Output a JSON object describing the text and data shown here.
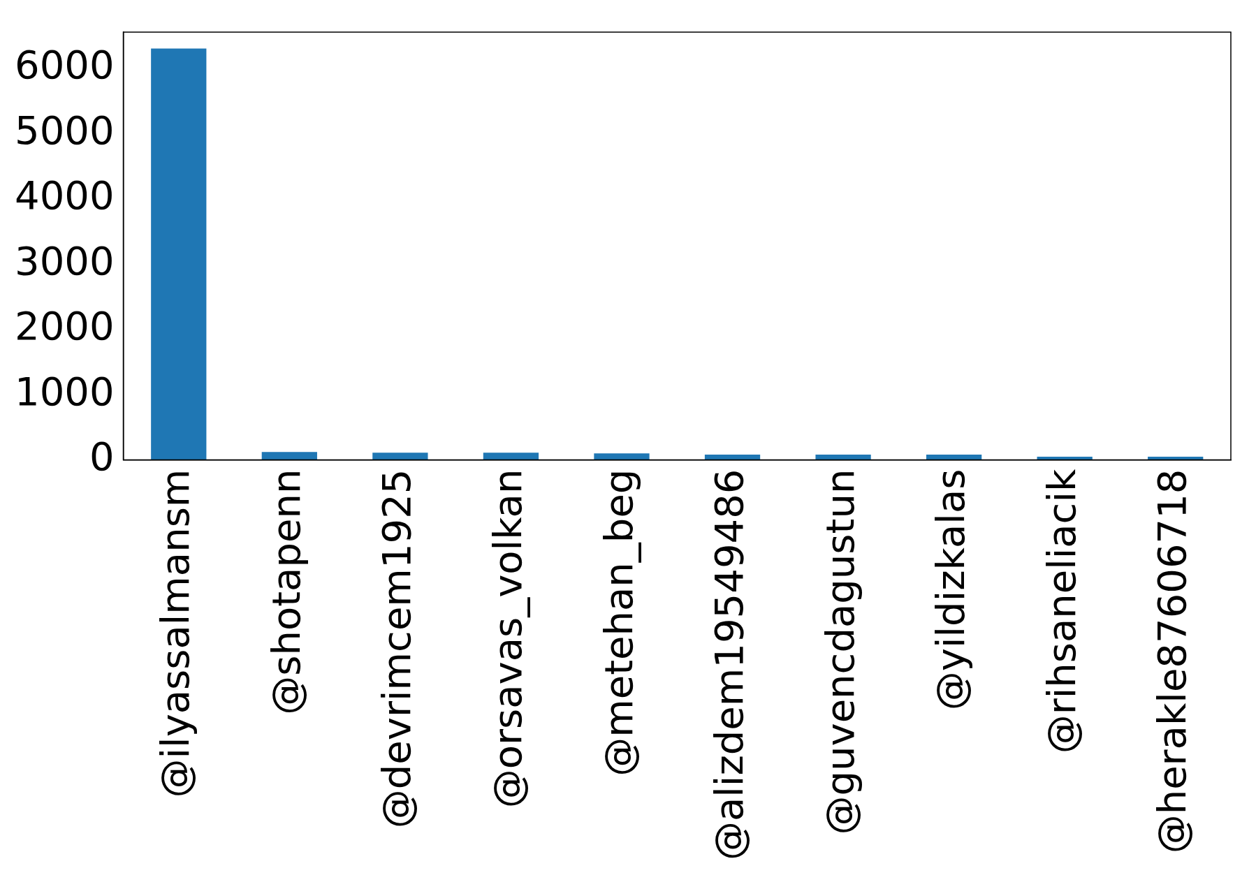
{
  "chart_data": {
    "type": "bar",
    "categories": [
      "@ilyassalmansm",
      "@shotapenn",
      "@devrimcem1925",
      "@orsavas_volkan",
      "@metehan_beg",
      "@alizdem19549486",
      "@guvencdagustun",
      "@yildizkalas",
      "@rihsaneliacik",
      "@herakle87606718"
    ],
    "values": [
      6300,
      120,
      110,
      110,
      100,
      80,
      80,
      80,
      50,
      50
    ],
    "color": "#1f77b4",
    "ylim": [
      0,
      6550
    ],
    "yticks": [
      0,
      1000,
      2000,
      3000,
      4000,
      5000,
      6000
    ],
    "grid": false,
    "legend": false
  }
}
